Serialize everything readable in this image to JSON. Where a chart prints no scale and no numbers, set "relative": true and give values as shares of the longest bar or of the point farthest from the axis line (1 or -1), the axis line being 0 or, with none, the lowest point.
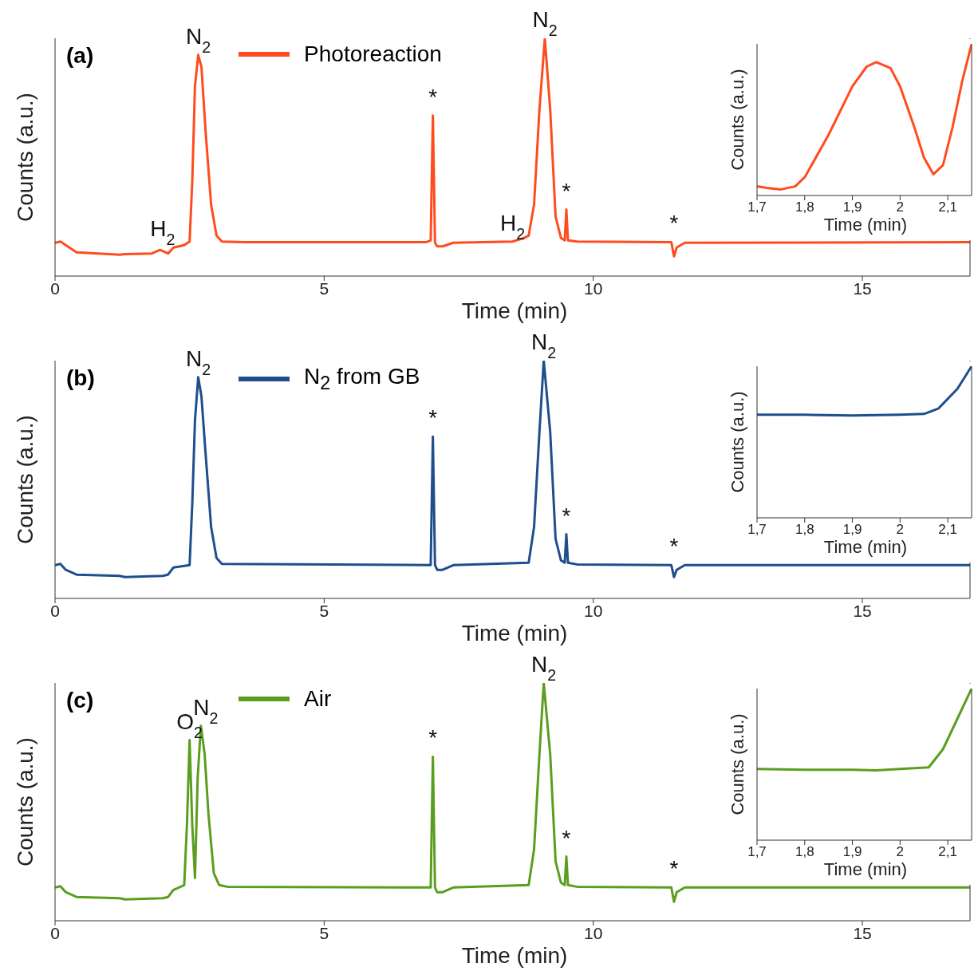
{
  "chart_data": [
    {
      "type": "line",
      "title": "(a)",
      "xlabel": "Time (min)",
      "ylabel": "Counts (a.u.)",
      "relative": true,
      "xlim": [
        0,
        17
      ],
      "xticks": [
        0,
        5,
        10,
        15
      ],
      "legend": "top",
      "series": [
        {
          "name": "Photoreaction",
          "color": "#ff4c1e",
          "x": [
            0,
            0.1,
            0.2,
            0.4,
            0.8,
            1.2,
            1.3,
            1.8,
            1.95,
            2.05,
            2.1,
            2.2,
            2.4,
            2.5,
            2.55,
            2.6,
            2.66,
            2.72,
            2.8,
            2.9,
            3.0,
            3.1,
            3.5,
            6.9,
            6.98,
            7.02,
            7.06,
            7.1,
            7.2,
            7.4,
            8.5,
            8.7,
            8.8,
            8.9,
            9.0,
            9.1,
            9.2,
            9.3,
            9.4,
            9.47,
            9.5,
            9.53,
            9.7,
            11.45,
            11.5,
            11.55,
            11.7,
            17
          ],
          "values": [
            0.14,
            0.145,
            0.13,
            0.1,
            0.095,
            0.09,
            0.092,
            0.095,
            0.11,
            0.1,
            0.095,
            0.12,
            0.13,
            0.145,
            0.4,
            0.8,
            0.93,
            0.88,
            0.6,
            0.3,
            0.17,
            0.145,
            0.143,
            0.143,
            0.15,
            0.675,
            0.14,
            0.125,
            0.125,
            0.14,
            0.145,
            0.159,
            0.17,
            0.3,
            0.7,
            1,
            0.7,
            0.25,
            0.16,
            0.15,
            0.28,
            0.15,
            0.145,
            0.143,
            0.083,
            0.12,
            0.14,
            0.143
          ]
        }
      ],
      "annotations": [
        {
          "text": "H$_{2}$",
          "x": 2.0,
          "y": 0.12
        },
        {
          "text": "N$_{2}$",
          "x": 2.66,
          "y": 0.93
        },
        {
          "text": "*",
          "x": 7.02,
          "y": 0.675
        },
        {
          "text": "H$_{2}$",
          "x": 8.5,
          "y": 0.145
        },
        {
          "text": "N$_{2}$",
          "x": 9.1,
          "y": 1
        },
        {
          "text": "*",
          "x": 9.5,
          "y": 0.28
        },
        {
          "text": "*",
          "x": 11.5,
          "y": 0.143
        }
      ]
    },
    {
      "type": "line",
      "xlabel": "Time (min)",
      "ylabel": "Counts (a.u.)",
      "relative": true,
      "xlim": [
        1.7,
        2.15
      ],
      "xticks": [
        {
          "value": 1.7,
          "label": "1,7"
        },
        {
          "value": 1.8,
          "label": "1,8"
        },
        {
          "value": 1.9,
          "label": "1,9"
        },
        {
          "value": 2,
          "label": "2"
        },
        {
          "value": 2.1,
          "label": "2,1"
        }
      ],
      "series": [
        {
          "color": "#ff4c1e",
          "x": [
            1.7,
            1.72,
            1.75,
            1.78,
            1.8,
            1.85,
            1.9,
            1.93,
            1.95,
            1.98,
            2.0,
            2.03,
            2.05,
            2.07,
            2.09,
            2.11,
            2.13,
            2.15
          ],
          "values": [
            0.06,
            0.05,
            0.04,
            0.06,
            0.12,
            0.4,
            0.72,
            0.85,
            0.88,
            0.84,
            0.72,
            0.45,
            0.25,
            0.14,
            0.2,
            0.45,
            0.75,
            1
          ]
        }
      ]
    },
    {
      "type": "line",
      "title": "(b)",
      "xlabel": "Time (min)",
      "ylabel": "Counts (a.u.)",
      "relative": true,
      "xlim": [
        0,
        17
      ],
      "xticks": [
        0,
        5,
        10,
        15
      ],
      "legend": "top",
      "series": [
        {
          "name": "N$_{2}$ from GB",
          "color": "#1f4e8c",
          "x": [
            0,
            0.1,
            0.2,
            0.4,
            1.2,
            1.3,
            2.0,
            2.1,
            2.2,
            2.5,
            2.55,
            2.6,
            2.66,
            2.72,
            2.8,
            2.9,
            3.0,
            3.1,
            6.98,
            7.02,
            7.06,
            7.1,
            7.2,
            7.4,
            8.8,
            8.9,
            9.0,
            9.08,
            9.2,
            9.3,
            9.4,
            9.47,
            9.5,
            9.53,
            9.7,
            11.45,
            11.5,
            11.55,
            11.7,
            17
          ],
          "values": [
            0.14,
            0.145,
            0.12,
            0.1,
            0.095,
            0.09,
            0.095,
            0.1,
            0.13,
            0.14,
            0.4,
            0.75,
            0.93,
            0.85,
            0.6,
            0.3,
            0.17,
            0.145,
            0.14,
            0.68,
            0.14,
            0.12,
            0.12,
            0.14,
            0.15,
            0.3,
            0.7,
            1,
            0.7,
            0.25,
            0.16,
            0.15,
            0.27,
            0.15,
            0.143,
            0.14,
            0.09,
            0.12,
            0.14,
            0.14
          ]
        }
      ],
      "annotations": [
        {
          "text": "N$_{2}$",
          "x": 2.66,
          "y": 0.93
        },
        {
          "text": "*",
          "x": 7.02,
          "y": 0.68
        },
        {
          "text": "N$_{2}$",
          "x": 9.08,
          "y": 1
        },
        {
          "text": "*",
          "x": 9.5,
          "y": 0.27
        },
        {
          "text": "*",
          "x": 11.5,
          "y": 0.14
        }
      ]
    },
    {
      "type": "line",
      "xlabel": "Time (min)",
      "ylabel": "Counts (a.u.)",
      "relative": true,
      "xlim": [
        1.7,
        2.15
      ],
      "xticks": [
        {
          "value": 1.7,
          "label": "1,7"
        },
        {
          "value": 1.8,
          "label": "1,8"
        },
        {
          "value": 1.9,
          "label": "1,9"
        },
        {
          "value": 2,
          "label": "2"
        },
        {
          "value": 2.1,
          "label": "2,1"
        }
      ],
      "series": [
        {
          "color": "#1f4e8c",
          "x": [
            1.7,
            1.8,
            1.9,
            2.0,
            2.05,
            2.08,
            2.12,
            2.15
          ],
          "values": [
            0.68,
            0.68,
            0.675,
            0.68,
            0.685,
            0.72,
            0.85,
            1
          ]
        }
      ]
    },
    {
      "type": "line",
      "title": "(c)",
      "xlabel": "Time (min)",
      "ylabel": "Counts (a.u.)",
      "relative": true,
      "xlim": [
        0,
        17
      ],
      "xticks": [
        0,
        5,
        10,
        15
      ],
      "legend": "top",
      "series": [
        {
          "name": "Air",
          "color": "#5b9e1f",
          "x": [
            0,
            0.1,
            0.2,
            0.4,
            1.2,
            1.3,
            2.0,
            2.1,
            2.2,
            2.3,
            2.4,
            2.45,
            2.5,
            2.55,
            2.6,
            2.65,
            2.71,
            2.78,
            2.85,
            2.95,
            3.05,
            3.2,
            6.98,
            7.02,
            7.06,
            7.1,
            7.2,
            7.4,
            8.8,
            8.9,
            9.0,
            9.08,
            9.2,
            9.3,
            9.4,
            9.47,
            9.5,
            9.53,
            9.7,
            11.45,
            11.5,
            11.55,
            11.7,
            17
          ],
          "values": [
            0.14,
            0.145,
            0.12,
            0.1,
            0.095,
            0.09,
            0.095,
            0.1,
            0.13,
            0.14,
            0.15,
            0.4,
            0.76,
            0.4,
            0.18,
            0.6,
            0.82,
            0.7,
            0.45,
            0.2,
            0.15,
            0.143,
            0.14,
            0.69,
            0.14,
            0.12,
            0.12,
            0.14,
            0.15,
            0.3,
            0.7,
            1,
            0.7,
            0.25,
            0.16,
            0.15,
            0.27,
            0.15,
            0.143,
            0.14,
            0.08,
            0.12,
            0.14,
            0.14
          ]
        }
      ],
      "annotations": [
        {
          "text": "O$_{2}$",
          "x": 2.5,
          "y": 0.76
        },
        {
          "text": "N$_{2}$",
          "x": 2.8,
          "y": 0.82
        },
        {
          "text": "*",
          "x": 7.02,
          "y": 0.69
        },
        {
          "text": "N$_{2}$",
          "x": 9.08,
          "y": 1
        },
        {
          "text": "*",
          "x": 9.5,
          "y": 0.27
        },
        {
          "text": "*",
          "x": 11.5,
          "y": 0.14
        }
      ]
    },
    {
      "type": "line",
      "xlabel": "Time (min)",
      "ylabel": "Counts (a.u.)",
      "relative": true,
      "xlim": [
        1.7,
        2.15
      ],
      "xticks": [
        {
          "value": 1.7,
          "label": "1,7"
        },
        {
          "value": 1.8,
          "label": "1,8"
        },
        {
          "value": 1.9,
          "label": "1,9"
        },
        {
          "value": 2,
          "label": "2"
        },
        {
          "value": 2.1,
          "label": "2,1"
        }
      ],
      "series": [
        {
          "color": "#5b9e1f",
          "x": [
            1.7,
            1.8,
            1.9,
            1.95,
            2.0,
            2.06,
            2.09,
            2.12,
            2.15
          ],
          "values": [
            0.47,
            0.465,
            0.465,
            0.46,
            0.47,
            0.48,
            0.6,
            0.8,
            1
          ]
        }
      ]
    }
  ]
}
